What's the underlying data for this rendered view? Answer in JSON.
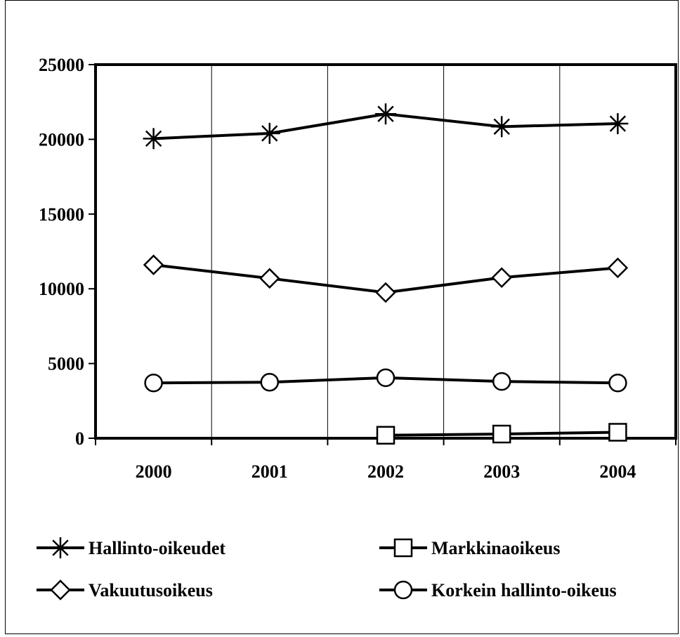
{
  "chart_data": {
    "type": "line",
    "title": "",
    "xlabel": "",
    "ylabel": "",
    "categories": [
      "2000",
      "2001",
      "2002",
      "2003",
      "2004"
    ],
    "ylim": [
      0,
      25000
    ],
    "yticks": [
      "0",
      "5000",
      "10000",
      "15000",
      "20000",
      "25000"
    ],
    "grid": "vertical",
    "legend_position": "bottom",
    "series": [
      {
        "name": "Hallinto-oikeudet",
        "marker": "star",
        "values": [
          20050,
          20400,
          21700,
          20850,
          21050
        ]
      },
      {
        "name": "Markkinaoikeus",
        "marker": "square",
        "values": [
          null,
          null,
          200,
          280,
          400
        ]
      },
      {
        "name": "Vakuutusoikeus",
        "marker": "diamond",
        "values": [
          11600,
          10700,
          9750,
          10750,
          11400
        ]
      },
      {
        "name": "Korkein hallinto-oikeus",
        "marker": "circle",
        "values": [
          3700,
          3750,
          4050,
          3800,
          3700
        ]
      }
    ]
  }
}
